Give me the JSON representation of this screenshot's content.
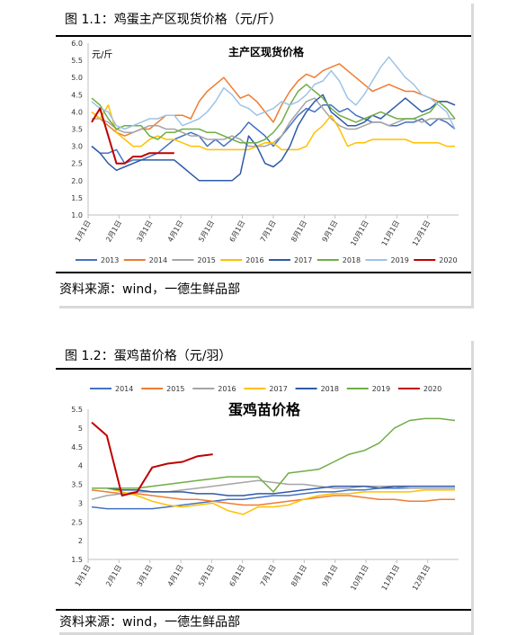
{
  "panels": [
    {
      "caption": "图 1.1：鸡蛋主产区现货价格（元/斤）",
      "source": "资料来源：wind，一德生鲜品部"
    },
    {
      "caption": "图 1.2：蛋鸡苗价格（元/羽）",
      "source": "资料来源：wind，一德生鲜品部"
    }
  ],
  "chart_data": [
    {
      "type": "line",
      "title": "主产区现货价格",
      "ylabel": "元/斤",
      "xlabel": "",
      "ylim": [
        1.0,
        6.0
      ],
      "yticks": [
        "1.0",
        "1.5",
        "2.0",
        "2.5",
        "3.0",
        "3.5",
        "4.0",
        "4.5",
        "5.0",
        "5.5",
        "6.0"
      ],
      "x_ticks": [
        "1月1日",
        "2月1日",
        "3月1日",
        "4月1日",
        "5月1日",
        "6月1日",
        "7月1日",
        "8月1日",
        "9月1日",
        "10月1日",
        "11月1日",
        "12月1日"
      ],
      "legend_position": "bottom",
      "grid": false,
      "series": [
        {
          "name": "2013",
          "color": "#4472c4",
          "values": [
            3.0,
            2.8,
            2.8,
            2.9,
            2.5,
            2.6,
            2.6,
            2.7,
            2.8,
            3.0,
            3.2,
            3.3,
            3.4,
            3.3,
            3.0,
            3.2,
            3.0,
            3.2,
            3.4,
            3.7,
            3.5,
            3.3,
            3.0,
            3.3,
            3.6,
            3.9,
            4.1,
            4.0,
            4.2,
            4.2,
            4.0,
            4.1,
            3.9,
            3.8,
            3.7,
            3.7,
            3.6,
            3.6,
            3.7,
            3.7,
            3.8,
            3.6,
            3.8,
            3.7,
            3.5
          ]
        },
        {
          "name": "2014",
          "color": "#ed7d31",
          "values": [
            4.0,
            3.8,
            3.6,
            3.4,
            3.3,
            3.4,
            3.5,
            3.5,
            3.7,
            3.9,
            3.9,
            3.9,
            3.8,
            4.3,
            4.6,
            4.8,
            5.0,
            4.7,
            4.4,
            4.5,
            4.3,
            4.0,
            3.7,
            4.2,
            4.6,
            4.9,
            5.1,
            5.0,
            5.2,
            5.3,
            5.4,
            5.2,
            5.0,
            4.8,
            4.6,
            4.7,
            4.8,
            4.7,
            4.6,
            4.6,
            4.5,
            4.4,
            4.3,
            4.3,
            4.2
          ]
        },
        {
          "name": "2015",
          "color": "#a5a5a5",
          "values": [
            3.8,
            3.8,
            3.7,
            3.5,
            3.4,
            3.4,
            3.5,
            3.6,
            3.6,
            3.5,
            3.5,
            3.4,
            3.3,
            3.3,
            3.2,
            3.2,
            3.2,
            3.3,
            3.2,
            3.0,
            3.0,
            3.0,
            3.1,
            3.3,
            3.7,
            4.0,
            4.3,
            4.4,
            4.1,
            3.8,
            3.6,
            3.5,
            3.5,
            3.6,
            3.7,
            3.7,
            3.6,
            3.7,
            3.8,
            3.8,
            3.7,
            3.8,
            3.8,
            3.8,
            3.8
          ]
        },
        {
          "name": "2016",
          "color": "#ffc000",
          "values": [
            4.0,
            3.8,
            4.2,
            3.4,
            3.2,
            3.0,
            3.0,
            3.2,
            3.3,
            3.2,
            3.2,
            3.1,
            3.0,
            3.0,
            2.9,
            2.9,
            2.9,
            2.9,
            2.9,
            2.9,
            3.0,
            3.1,
            3.1,
            2.9,
            2.9,
            2.9,
            3.0,
            3.4,
            3.6,
            3.9,
            3.5,
            3.0,
            3.1,
            3.1,
            3.2,
            3.2,
            3.2,
            3.2,
            3.2,
            3.1,
            3.1,
            3.1,
            3.1,
            3.0,
            3.0
          ]
        },
        {
          "name": "2017",
          "color": "#2e5aa8",
          "values": [
            3.0,
            2.8,
            2.5,
            2.3,
            2.4,
            2.5,
            2.6,
            2.6,
            2.6,
            2.6,
            2.6,
            2.4,
            2.2,
            2.0,
            2.0,
            2.0,
            2.0,
            2.0,
            2.2,
            3.3,
            3.0,
            2.5,
            2.4,
            2.6,
            3.0,
            3.6,
            4.0,
            4.3,
            4.5,
            4.0,
            3.8,
            3.6,
            3.6,
            3.7,
            3.9,
            3.8,
            4.0,
            4.2,
            4.4,
            4.2,
            4.0,
            4.1,
            4.3,
            4.3,
            4.2
          ]
        },
        {
          "name": "2018",
          "color": "#70ad47",
          "values": [
            4.4,
            4.2,
            3.8,
            3.5,
            3.6,
            3.6,
            3.6,
            3.3,
            3.2,
            3.4,
            3.4,
            3.5,
            3.5,
            3.5,
            3.4,
            3.4,
            3.3,
            3.2,
            3.1,
            3.1,
            3.1,
            3.2,
            3.4,
            3.7,
            4.2,
            4.6,
            4.8,
            4.6,
            4.4,
            4.1,
            3.9,
            3.8,
            3.7,
            3.8,
            3.9,
            4.0,
            3.9,
            3.8,
            3.8,
            3.8,
            3.9,
            4.0,
            4.3,
            4.1,
            3.8
          ]
        },
        {
          "name": "2019",
          "color": "#9dc3e6",
          "values": [
            4.3,
            4.1,
            4.0,
            3.6,
            3.5,
            3.6,
            3.7,
            3.8,
            3.8,
            3.9,
            3.9,
            3.6,
            3.7,
            3.8,
            4.0,
            4.3,
            4.7,
            4.5,
            4.2,
            4.1,
            3.9,
            4.0,
            4.1,
            4.3,
            4.2,
            4.3,
            4.5,
            4.8,
            4.9,
            5.2,
            4.9,
            4.4,
            4.2,
            4.5,
            4.9,
            5.3,
            5.6,
            5.3,
            5.0,
            4.8,
            4.5,
            4.4,
            4.2,
            4.0,
            3.5
          ]
        },
        {
          "name": "2020",
          "color": "#c00000",
          "values": [
            3.7,
            4.1,
            3.3,
            2.5,
            2.5,
            2.7,
            2.7,
            2.8,
            2.8,
            2.8,
            2.8,
            null,
            null,
            null,
            null,
            null,
            null,
            null,
            null,
            null,
            null,
            null,
            null,
            null,
            null,
            null,
            null,
            null,
            null,
            null,
            null,
            null,
            null,
            null,
            null,
            null,
            null,
            null,
            null,
            null,
            null,
            null,
            null,
            null,
            null
          ]
        }
      ]
    },
    {
      "type": "line",
      "title": "蛋鸡苗价格",
      "ylabel": "",
      "xlabel": "",
      "ylim": [
        1.5,
        5.5
      ],
      "yticks": [
        "1.5",
        "2",
        "2.5",
        "3",
        "3.5",
        "4",
        "4.5",
        "5",
        "5.5"
      ],
      "x_ticks": [
        "1月1日",
        "2月1日",
        "3月1日",
        "4月1日",
        "5月1日",
        "6月1日",
        "7月1日",
        "8月1日",
        "9月1日",
        "10月1日",
        "11月1日",
        "12月1日"
      ],
      "legend_position": "top",
      "grid": false,
      "series": [
        {
          "name": "2014",
          "color": "#4472c4",
          "values": [
            2.9,
            2.85,
            2.85,
            2.85,
            2.85,
            2.9,
            2.95,
            3.0,
            3.05,
            3.1,
            3.1,
            3.15,
            3.2,
            3.2,
            3.25,
            3.3,
            3.3,
            3.35,
            3.35,
            3.4,
            3.4,
            3.4,
            3.4,
            3.4,
            3.4
          ]
        },
        {
          "name": "2015",
          "color": "#ed7d31",
          "values": [
            3.35,
            3.3,
            3.25,
            3.25,
            3.2,
            3.15,
            3.1,
            3.1,
            3.05,
            3.0,
            2.95,
            2.95,
            3.0,
            3.05,
            3.1,
            3.15,
            3.2,
            3.2,
            3.15,
            3.1,
            3.1,
            3.05,
            3.05,
            3.1,
            3.1
          ]
        },
        {
          "name": "2016",
          "color": "#a5a5a5",
          "values": [
            3.1,
            3.2,
            3.25,
            3.3,
            3.3,
            3.3,
            3.35,
            3.4,
            3.45,
            3.5,
            3.55,
            3.6,
            3.55,
            3.5,
            3.5,
            3.45,
            3.4,
            3.4,
            3.45,
            3.45,
            3.45,
            3.4,
            3.4,
            3.4,
            3.4
          ]
        },
        {
          "name": "2017",
          "color": "#ffc000",
          "values": [
            3.4,
            3.4,
            3.3,
            3.2,
            3.05,
            2.95,
            2.9,
            2.95,
            3.0,
            2.8,
            2.7,
            2.9,
            2.9,
            2.95,
            3.1,
            3.2,
            3.25,
            3.25,
            3.3,
            3.3,
            3.3,
            3.3,
            3.35,
            3.35,
            3.35
          ]
        },
        {
          "name": "2018",
          "color": "#2e5aa8",
          "values": [
            3.4,
            3.4,
            3.35,
            3.35,
            3.3,
            3.3,
            3.3,
            3.25,
            3.25,
            3.2,
            3.2,
            3.25,
            3.25,
            3.3,
            3.35,
            3.4,
            3.45,
            3.45,
            3.45,
            3.4,
            3.45,
            3.45,
            3.45,
            3.45,
            3.45
          ]
        },
        {
          "name": "2019",
          "color": "#70ad47",
          "values": [
            3.4,
            3.4,
            3.4,
            3.4,
            3.45,
            3.5,
            3.55,
            3.6,
            3.65,
            3.7,
            3.7,
            3.7,
            3.3,
            3.8,
            3.85,
            3.9,
            4.1,
            4.3,
            4.4,
            4.6,
            5.0,
            5.2,
            5.25,
            5.25,
            5.2
          ]
        },
        {
          "name": "2020",
          "color": "#c00000",
          "values": [
            5.15,
            4.8,
            3.2,
            3.3,
            3.95,
            4.05,
            4.1,
            4.25,
            4.3,
            null,
            null,
            null,
            null,
            null,
            null,
            null,
            null,
            null,
            null,
            null,
            null,
            null,
            null,
            null,
            null
          ]
        }
      ]
    }
  ]
}
